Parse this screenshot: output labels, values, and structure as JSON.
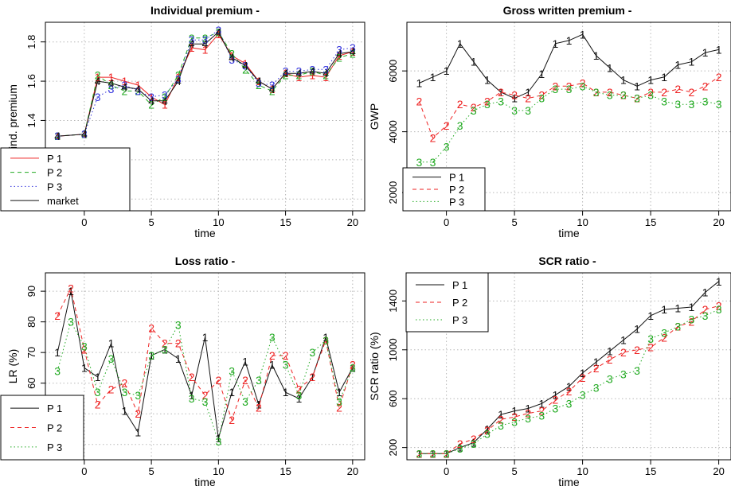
{
  "chart_data": [
    {
      "type": "line",
      "title": "Individual premium -",
      "xlabel": "time",
      "ylabel": "ind. premium",
      "xlim": [
        -2.9,
        20.9
      ],
      "ylim": [
        0.94,
        1.9
      ],
      "xticks": [
        0,
        5,
        10,
        15,
        20
      ],
      "yticks": [
        1.0,
        1.2,
        1.4,
        1.6,
        1.8
      ],
      "ytick_labels": [
        "1.0",
        "1.2",
        "1.4",
        "1.6",
        "1.8"
      ],
      "grid": true,
      "legend_position": "bottom-left",
      "x": [
        -2,
        0,
        1,
        2,
        3,
        4,
        5,
        6,
        7,
        8,
        9,
        10,
        11,
        12,
        13,
        14,
        15,
        16,
        17,
        18,
        19,
        20
      ],
      "series": [
        {
          "name": "P 1",
          "marker": "1",
          "color": "#ee2222",
          "dash": "solid",
          "values": [
            1.32,
            1.33,
            1.62,
            1.62,
            1.6,
            1.58,
            1.52,
            1.48,
            1.62,
            1.77,
            1.76,
            1.84,
            1.73,
            1.69,
            1.6,
            1.56,
            1.64,
            1.62,
            1.63,
            1.62,
            1.73,
            1.75
          ]
        },
        {
          "name": "P 2",
          "marker": "2",
          "color": "#22aa22",
          "dash": "dashed",
          "values": [
            1.32,
            1.33,
            1.63,
            1.58,
            1.55,
            1.55,
            1.48,
            1.52,
            1.63,
            1.82,
            1.82,
            1.85,
            1.74,
            1.66,
            1.58,
            1.55,
            1.63,
            1.63,
            1.65,
            1.63,
            1.72,
            1.74
          ]
        },
        {
          "name": "P 3",
          "marker": "3",
          "color": "#3333dd",
          "dash": "dotted",
          "values": [
            1.32,
            1.33,
            1.52,
            1.56,
            1.58,
            1.55,
            1.52,
            1.53,
            1.61,
            1.81,
            1.81,
            1.86,
            1.71,
            1.68,
            1.59,
            1.58,
            1.65,
            1.65,
            1.66,
            1.66,
            1.76,
            1.77
          ]
        },
        {
          "name": "market",
          "marker": "4",
          "color": "#111111",
          "dash": "solid",
          "values": [
            1.32,
            1.33,
            1.6,
            1.59,
            1.57,
            1.56,
            1.5,
            1.5,
            1.6,
            1.79,
            1.79,
            1.85,
            1.72,
            1.68,
            1.6,
            1.56,
            1.64,
            1.64,
            1.65,
            1.64,
            1.74,
            1.75
          ]
        }
      ]
    },
    {
      "type": "line",
      "title": "Gross written premium -",
      "xlabel": "time",
      "ylabel": "GWP",
      "xlim": [
        -2.9,
        20.9
      ],
      "ylim": [
        1400,
        7600
      ],
      "xticks": [
        0,
        5,
        10,
        15,
        20
      ],
      "yticks": [
        2000,
        4000,
        6000
      ],
      "ytick_labels": [
        "2000",
        "4000",
        "6000"
      ],
      "grid": true,
      "legend_position": "bottom-left",
      "x": [
        -2,
        -1,
        0,
        1,
        2,
        3,
        4,
        5,
        6,
        7,
        8,
        9,
        10,
        11,
        12,
        13,
        14,
        15,
        16,
        17,
        18,
        19,
        20
      ],
      "series": [
        {
          "name": "P 1",
          "marker": "1",
          "color": "#111111",
          "dash": "solid",
          "values": [
            5600,
            5800,
            6000,
            6900,
            6300,
            5700,
            5300,
            5100,
            5300,
            5900,
            6900,
            7000,
            7200,
            6500,
            6100,
            5700,
            5500,
            5700,
            5800,
            6200,
            6300,
            6600,
            6700
          ]
        },
        {
          "name": "P 2",
          "marker": "2",
          "color": "#ee2222",
          "dash": "dashed",
          "values": [
            5000,
            3800,
            4200,
            4900,
            4800,
            5000,
            5300,
            5200,
            5100,
            5200,
            5500,
            5500,
            5600,
            5300,
            5300,
            5200,
            5100,
            5300,
            5300,
            5400,
            5300,
            5500,
            5800
          ]
        },
        {
          "name": "P 3",
          "marker": "3",
          "color": "#22aa22",
          "dash": "dotted",
          "values": [
            3000,
            3000,
            3500,
            4200,
            4700,
            4900,
            5000,
            4700,
            4700,
            5100,
            5400,
            5400,
            5500,
            5300,
            5200,
            5200,
            5100,
            5200,
            5000,
            4900,
            4900,
            5000,
            4900
          ]
        }
      ]
    },
    {
      "type": "line",
      "title": "Loss ratio -",
      "xlabel": "time",
      "ylabel": "LR (%)",
      "xlim": [
        -2.9,
        20.9
      ],
      "ylim": [
        35,
        96
      ],
      "xticks": [
        0,
        5,
        10,
        15,
        20
      ],
      "yticks": [
        40,
        50,
        60,
        70,
        80,
        90
      ],
      "ytick_labels": [
        "40",
        "50",
        "60",
        "70",
        "80",
        "90"
      ],
      "grid": true,
      "legend_position": "bottom-left",
      "x": [
        -2,
        -1,
        0,
        1,
        2,
        3,
        4,
        5,
        6,
        7,
        8,
        9,
        10,
        11,
        12,
        13,
        14,
        15,
        16,
        17,
        18,
        19,
        20
      ],
      "series": [
        {
          "name": "P 1",
          "marker": "1",
          "color": "#111111",
          "dash": "solid",
          "values": [
            70,
            90,
            65,
            62,
            73,
            51,
            44,
            69,
            71,
            68,
            56,
            75,
            42,
            57,
            67,
            53,
            66,
            57,
            55,
            62,
            75,
            57,
            65
          ]
        },
        {
          "name": "P 2",
          "marker": "2",
          "color": "#ee2222",
          "dash": "dashed",
          "values": [
            82,
            91,
            71,
            53,
            58,
            60,
            50,
            78,
            73,
            73,
            62,
            56,
            61,
            48,
            61,
            52,
            69,
            69,
            58,
            62,
            74,
            52,
            66
          ]
        },
        {
          "name": "P 3",
          "marker": "3",
          "color": "#22aa22",
          "dash": "dotted",
          "values": [
            64,
            80,
            72,
            57,
            68,
            57,
            56,
            69,
            71,
            79,
            55,
            54,
            41,
            64,
            54,
            61,
            75,
            66,
            56,
            70,
            74,
            54,
            65
          ]
        }
      ]
    },
    {
      "type": "line",
      "title": "SCR ratio -",
      "xlabel": "time",
      "ylabel": "SCR ratio (%)",
      "xlim": [
        -2.9,
        20.9
      ],
      "ylim": [
        100,
        1630
      ],
      "xticks": [
        0,
        5,
        10,
        15,
        20
      ],
      "yticks": [
        200,
        600,
        1000,
        1400
      ],
      "ytick_labels": [
        "200",
        "600",
        "1000",
        "1400"
      ],
      "grid": true,
      "legend_position": "top-left",
      "x": [
        -2,
        -1,
        0,
        1,
        2,
        3,
        4,
        5,
        6,
        7,
        8,
        9,
        10,
        11,
        12,
        13,
        14,
        15,
        16,
        17,
        18,
        19,
        20
      ],
      "series": [
        {
          "name": "P 1",
          "marker": "1",
          "color": "#111111",
          "dash": "solid",
          "values": [
            150,
            150,
            150,
            200,
            240,
            350,
            470,
            500,
            520,
            560,
            630,
            700,
            810,
            900,
            990,
            1080,
            1170,
            1280,
            1330,
            1340,
            1350,
            1470,
            1560
          ]
        },
        {
          "name": "P 2",
          "marker": "2",
          "color": "#ee2222",
          "dash": "dashed",
          "values": [
            150,
            150,
            150,
            230,
            270,
            340,
            430,
            450,
            480,
            500,
            590,
            660,
            770,
            850,
            920,
            980,
            1000,
            1020,
            1100,
            1190,
            1230,
            1330,
            1360
          ]
        },
        {
          "name": "P 3",
          "marker": "3",
          "color": "#22aa22",
          "dash": "dotted",
          "values": [
            150,
            150,
            150,
            190,
            230,
            310,
            380,
            410,
            440,
            460,
            520,
            560,
            630,
            690,
            760,
            800,
            830,
            1090,
            1140,
            1190,
            1250,
            1280,
            1330
          ]
        }
      ]
    }
  ]
}
